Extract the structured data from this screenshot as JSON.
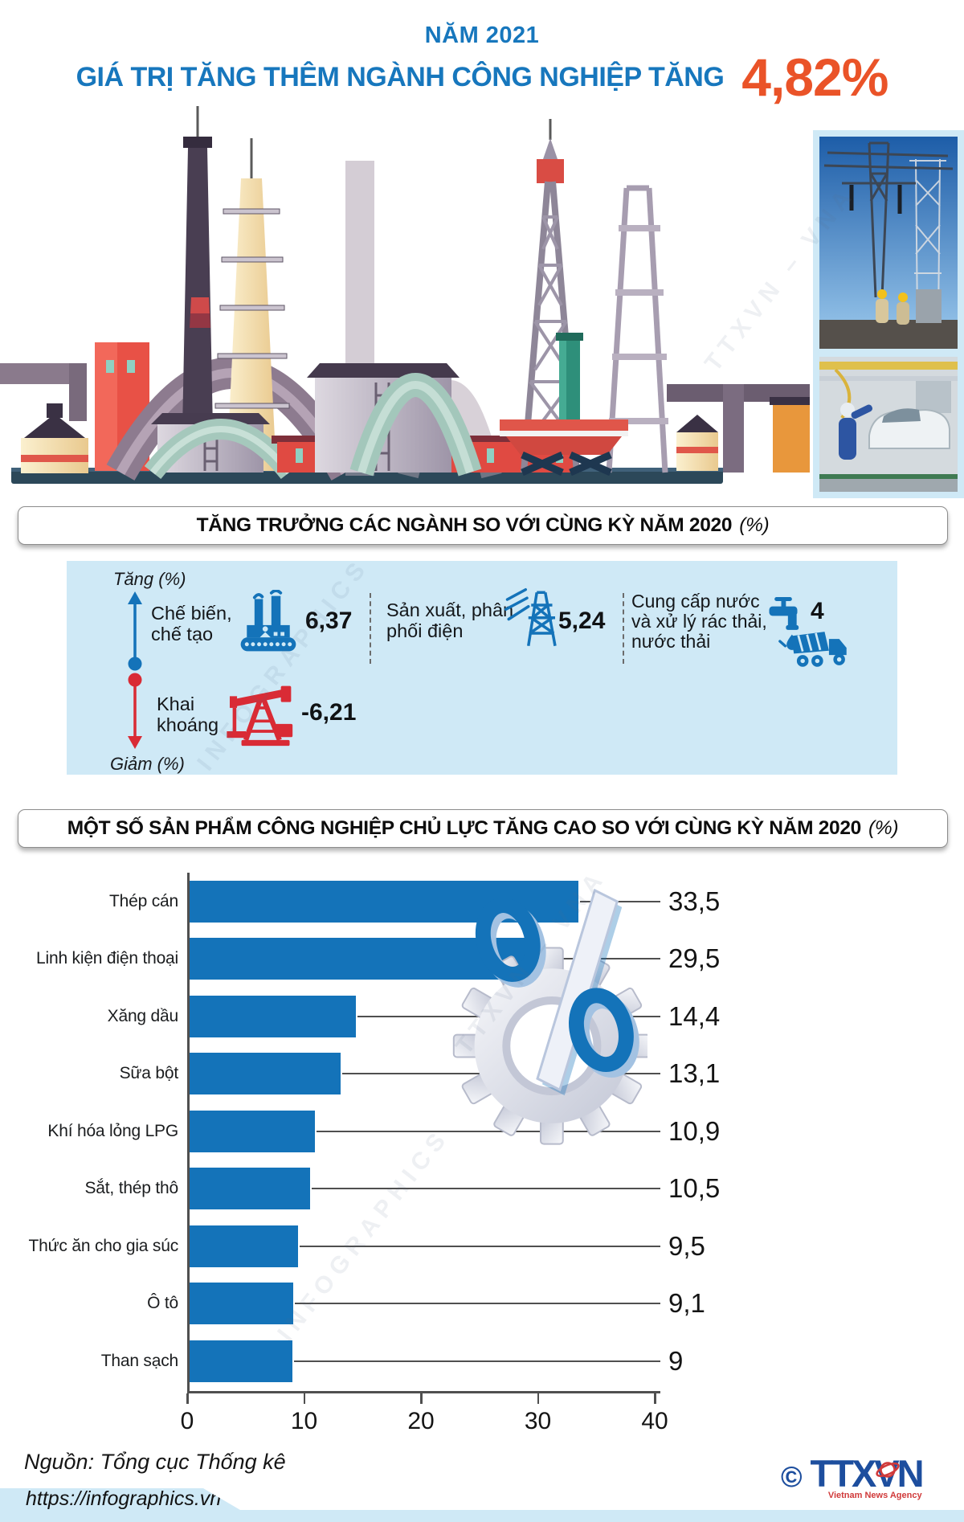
{
  "header": {
    "year_label": "NĂM 2021",
    "title": "GIÁ TRỊ TĂNG THÊM NGÀNH CÔNG NGHIỆP TĂNG",
    "value": "4,82%"
  },
  "section_growth": {
    "title": "TĂNG TRƯỞNG CÁC NGÀNH SO VỚI CÙNG KỲ NĂM 2020",
    "unit": "(%)",
    "up_label": "Tăng (%)",
    "down_label": "Giảm (%)"
  },
  "section_products": {
    "title": "MỘT SỐ SẢN PHẨM CÔNG NGHIỆP CHỦ LỰC TĂNG CAO SO VỚI CÙNG KỲ NĂM 2020",
    "unit": "(%)"
  },
  "chart_data": [
    {
      "type": "table",
      "title": "TĂNG TRƯỞNG CÁC NGÀNH SO VỚI CÙNG KỲ NĂM 2020 (%)",
      "categories": [
        "Chế biến, chế tạo",
        "Sản xuất, phân phối điện",
        "Cung cấp nước và xử lý rác thải, nước thải",
        "Khai khoáng"
      ],
      "values": [
        6.37,
        5.24,
        4,
        -6.21
      ],
      "value_labels": [
        "6,37",
        "5,24",
        "4",
        "-6,21"
      ],
      "icons": [
        "factory-icon",
        "power-pylon-icon",
        "faucet-and-garbage-truck-icon",
        "oil-pump-icon"
      ],
      "directions": [
        "up",
        "up",
        "up",
        "down"
      ]
    },
    {
      "type": "bar",
      "orientation": "horizontal",
      "title": "MỘT SỐ SẢN PHẨM CÔNG NGHIỆP CHỦ LỰC TĂNG CAO SO VỚI CÙNG KỲ NĂM 2020 (%)",
      "categories": [
        "Thép cán",
        "Linh kiện điện thoại",
        "Xăng dầu",
        "Sữa bột",
        "Khí hóa lỏng LPG",
        "Sắt, thép thô",
        "Thức ăn cho gia súc",
        "Ô tô",
        "Than sạch"
      ],
      "values": [
        33.5,
        29.5,
        14.4,
        13.1,
        10.9,
        10.5,
        9.5,
        9.1,
        9
      ],
      "value_labels": [
        "33,5",
        "29,5",
        "14,4",
        "13,1",
        "10,9",
        "10,5",
        "9,5",
        "9,1",
        "9"
      ],
      "xlim": [
        0,
        40
      ],
      "x_ticks": [
        "0",
        "10",
        "20",
        "30",
        "40"
      ],
      "grid": false,
      "legend": false,
      "bar_color": "#1473b9"
    }
  ],
  "footer": {
    "source": "Nguồn: Tổng cục Thống kê",
    "url": "https://infographics.vn",
    "copyright": "©",
    "logo_text": "TTXVN",
    "logo_subtext": "Vietnam News Agency"
  },
  "watermark": {
    "line1": "TTXVN – VNA",
    "line2": "INFOGRAPHICS"
  },
  "colors": {
    "title_blue": "#1777bd",
    "accent_orange": "#ea5328",
    "bar_blue": "#1473b9",
    "panel_blue": "#cfe9f6",
    "down_red": "#d92b35",
    "pill_border": "#8d8d8d",
    "axis_gray": "#4f4f4f",
    "logo_navy": "#1d4e9e",
    "logo_red": "#d03a3a"
  }
}
